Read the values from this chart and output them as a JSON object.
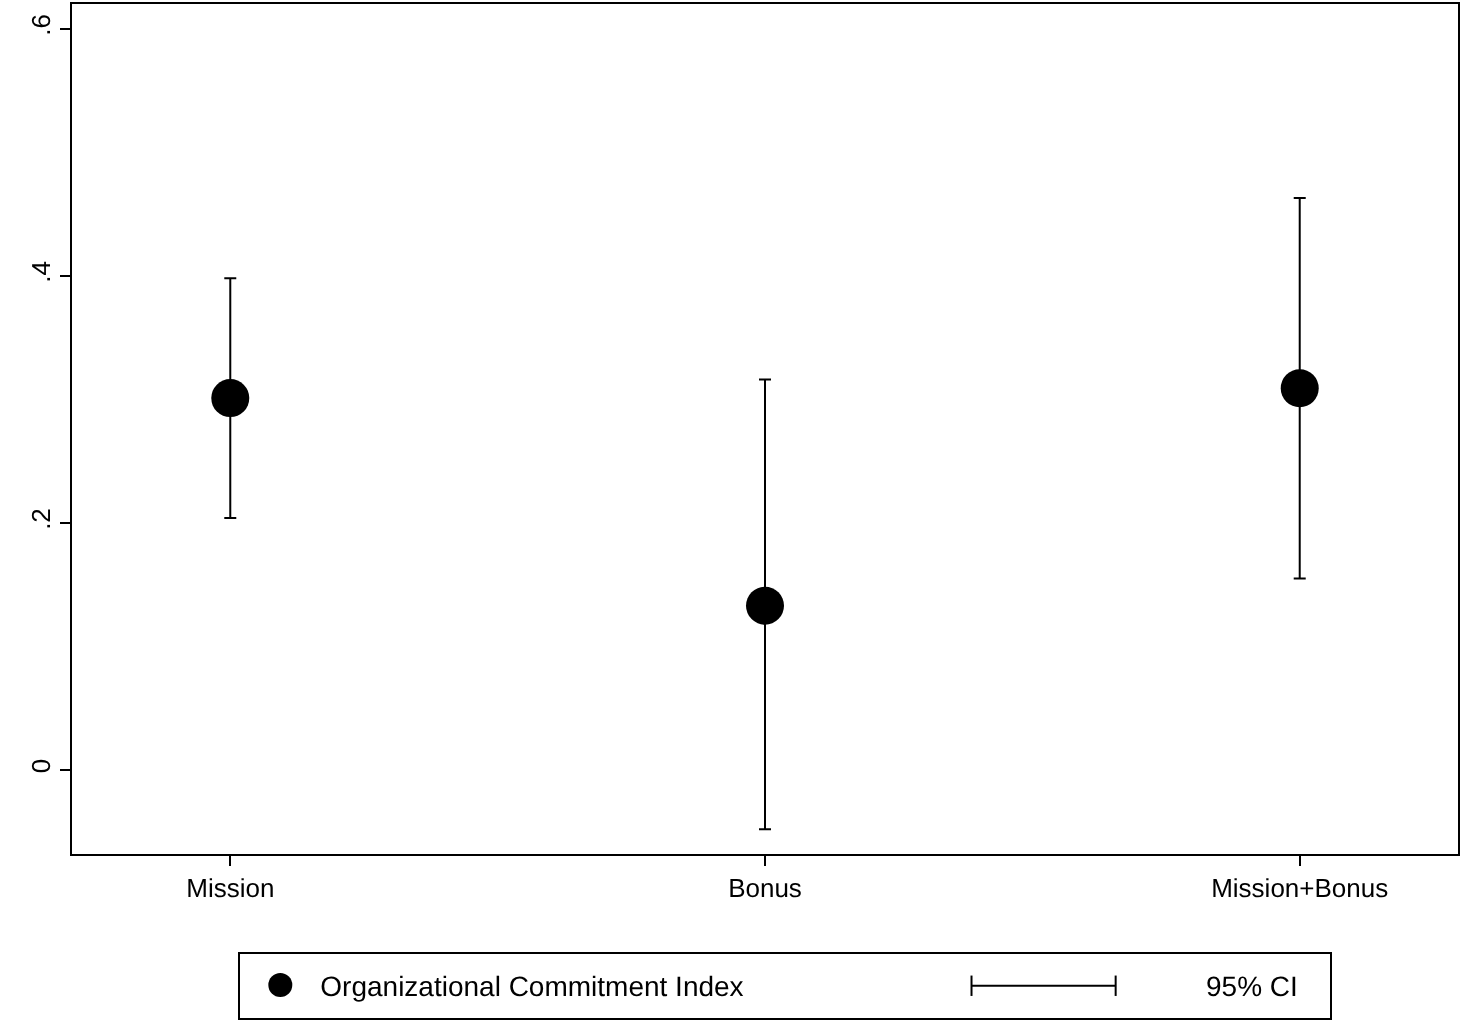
{
  "chart_data": {
    "type": "scatter",
    "categories": [
      "Mission",
      "Bonus",
      "Mission+Bonus"
    ],
    "series": [
      {
        "name": "Organizational Commitment Index",
        "color": "#000000",
        "values": [
          0.301,
          0.133,
          0.309
        ],
        "errors": [
          [
            0.204,
            0.398
          ],
          [
            -0.048,
            0.316
          ],
          [
            0.155,
            0.463
          ]
        ]
      }
    ],
    "ylim": [
      -0.068,
      0.62
    ],
    "yticks": [
      {
        "value": 0,
        "label": "0"
      },
      {
        "value": 0.2,
        "label": ".2"
      },
      {
        "value": 0.4,
        "label": ".4"
      },
      {
        "value": 0.6,
        "label": ".6"
      }
    ],
    "annotations": [
      "95% CI"
    ],
    "marker": "circle",
    "legend": "bottom"
  }
}
